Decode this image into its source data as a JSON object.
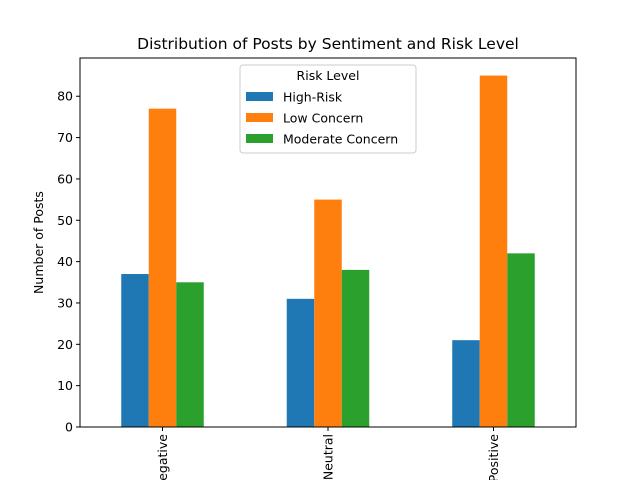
{
  "chart_data": {
    "type": "bar",
    "title": "Distribution of Posts by Sentiment and Risk Level",
    "xlabel": "",
    "ylabel": "Number of Posts",
    "categories": [
      "Negative",
      "Neutral",
      "Positive"
    ],
    "series": [
      {
        "name": "High-Risk",
        "values": [
          37,
          31,
          21
        ],
        "color": "#1f77b4"
      },
      {
        "name": "Low Concern",
        "values": [
          77,
          55,
          85
        ],
        "color": "#ff7f0e"
      },
      {
        "name": "Moderate Concern",
        "values": [
          35,
          38,
          42
        ],
        "color": "#2ca02c"
      }
    ],
    "ylim": [
      0,
      89.25
    ],
    "yticks": [
      0,
      10,
      20,
      30,
      40,
      50,
      60,
      70,
      80
    ],
    "legend": {
      "title": "Risk Level",
      "placement": "top-center"
    },
    "grid": false
  }
}
